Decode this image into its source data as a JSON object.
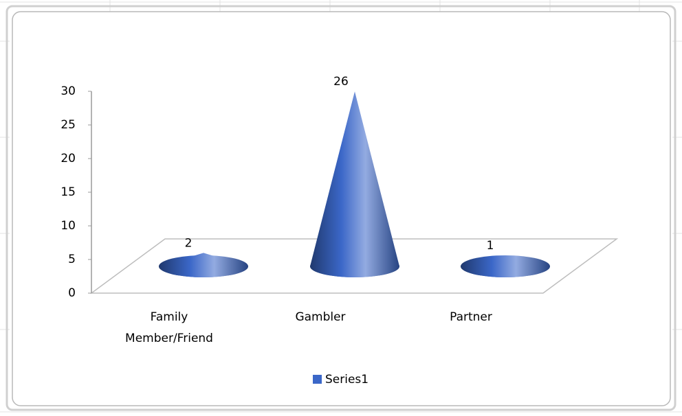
{
  "chart_data": {
    "type": "cone",
    "categories": [
      "Family Member/Friend",
      "Gambler",
      "Partner"
    ],
    "series": [
      {
        "name": "Series1",
        "color": "#3b67c8",
        "values": [
          2,
          26,
          1
        ]
      }
    ],
    "ylim": [
      0,
      30
    ],
    "yticks": [
      0,
      5,
      10,
      15,
      20,
      25,
      30
    ],
    "grid": false,
    "legend": "bottom"
  }
}
